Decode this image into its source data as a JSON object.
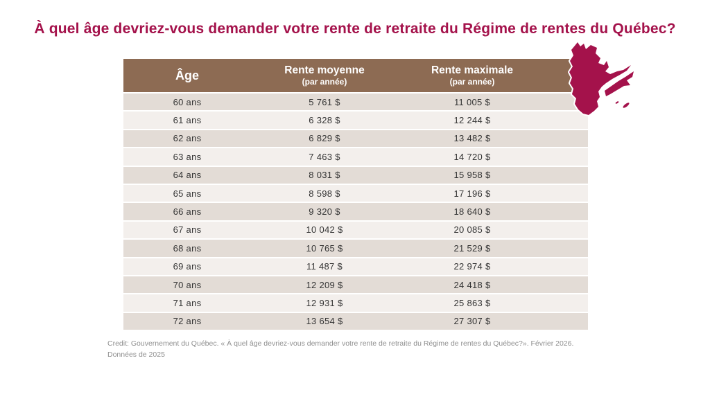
{
  "title": "À quel âge devriez-vous demander votre rente de retraite du Régime de rentes du Québec?",
  "table": {
    "columns": [
      {
        "label": "Âge",
        "sublabel": ""
      },
      {
        "label": "Rente moyenne",
        "sublabel": "(par année)"
      },
      {
        "label": "Rente maximale",
        "sublabel": "(par année)"
      }
    ],
    "rows": [
      {
        "age": "60 ans",
        "moyenne": "5 761 $",
        "maximale": "11 005 $"
      },
      {
        "age": "61 ans",
        "moyenne": "6 328 $",
        "maximale": "12 244 $"
      },
      {
        "age": "62 ans",
        "moyenne": "6 829 $",
        "maximale": "13 482 $"
      },
      {
        "age": "63 ans",
        "moyenne": "7 463 $",
        "maximale": "14 720 $"
      },
      {
        "age": "64 ans",
        "moyenne": "8 031 $",
        "maximale": "15 958 $"
      },
      {
        "age": "65 ans",
        "moyenne": "8 598 $",
        "maximale": "17 196 $"
      },
      {
        "age": "66 ans",
        "moyenne": "9 320 $",
        "maximale": "18 640 $"
      },
      {
        "age": "67 ans",
        "moyenne": "10 042 $",
        "maximale": "20 085 $"
      },
      {
        "age": "68 ans",
        "moyenne": "10 765 $",
        "maximale": "21 529 $"
      },
      {
        "age": "69 ans",
        "moyenne": "11 487 $",
        "maximale": "22 974 $"
      },
      {
        "age": "70 ans",
        "moyenne": "12 209 $",
        "maximale": "24 418 $"
      },
      {
        "age": "71 ans",
        "moyenne": "12 931 $",
        "maximale": "25 863 $"
      },
      {
        "age": "72 ans",
        "moyenne": "13 654 $",
        "maximale": "27 307 $"
      }
    ]
  },
  "footer": {
    "line1": "Credit: Gouvernement du Québec. « À quel âge devriez-vous demander votre rente de retraite du Régime de rentes du Québec?». Février 2026.",
    "line2": "Données de 2025"
  },
  "icons": {
    "map": "quebec-province-silhouette"
  },
  "colors": {
    "title": "#A4124B",
    "map": "#A4124B",
    "header_bg": "#8D6B53",
    "header_text": "#FFFFFF",
    "row_dark": "#E3DCD6",
    "row_light": "#F3EFEC",
    "body_text": "#333333",
    "footer_text": "#8F8F8F"
  },
  "chart_data": {
    "type": "table",
    "title": "À quel âge devriez-vous demander votre rente de retraite du Régime de rentes du Québec?",
    "columns": [
      "Âge",
      "Rente moyenne (par année)",
      "Rente maximale (par année)"
    ],
    "unit": "$",
    "rows": [
      [
        "60 ans",
        5761,
        11005
      ],
      [
        "61 ans",
        6328,
        12244
      ],
      [
        "62 ans",
        6829,
        13482
      ],
      [
        "63 ans",
        7463,
        14720
      ],
      [
        "64 ans",
        8031,
        15958
      ],
      [
        "65 ans",
        8598,
        17196
      ],
      [
        "66 ans",
        9320,
        18640
      ],
      [
        "67 ans",
        10042,
        20085
      ],
      [
        "68 ans",
        10765,
        21529
      ],
      [
        "69 ans",
        11487,
        22974
      ],
      [
        "70 ans",
        12209,
        24418
      ],
      [
        "71 ans",
        12931,
        25863
      ],
      [
        "72 ans",
        13654,
        27307
      ]
    ],
    "source_note": "Credit: Gouvernement du Québec. « À quel âge devriez-vous demander votre rente de retraite du Régime de rentes du Québec?». Février 2026. Données de 2025"
  }
}
